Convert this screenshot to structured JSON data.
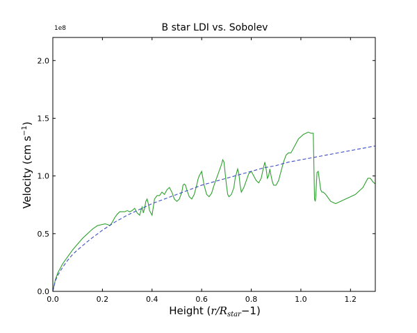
{
  "chart_data": {
    "type": "line",
    "title": "B star LDI vs. Sobolev",
    "xlabel_prefix": "Height (",
    "xlabel_math": "r/R",
    "xlabel_sub": "star",
    "xlabel_suffix": "−1)",
    "ylabel_main": "Velocity (cm s",
    "ylabel_sup": "−1",
    "ylabel_close": ")",
    "y_offset_label": "1e8",
    "xlim": [
      0.0,
      1.3
    ],
    "ylim": [
      0.0,
      2.2
    ],
    "xticks": [
      0.0,
      0.2,
      0.4,
      0.6,
      0.8,
      1.0,
      1.2
    ],
    "xtick_labels": [
      "0.0",
      "0.2",
      "0.4",
      "0.6",
      "0.8",
      "1.0",
      "1.2"
    ],
    "yticks": [
      0.0,
      0.5,
      1.0,
      1.5,
      2.0
    ],
    "ytick_labels": [
      "0.0",
      "0.5",
      "1.0",
      "1.5",
      "2.0"
    ],
    "grid": false,
    "legend": "none",
    "series": [
      {
        "color": "#2ca02c",
        "style": "solid",
        "x": [
          0.0,
          0.005,
          0.01,
          0.02,
          0.04,
          0.06,
          0.08,
          0.1,
          0.12,
          0.14,
          0.16,
          0.18,
          0.2,
          0.21,
          0.22,
          0.23,
          0.24,
          0.25,
          0.26,
          0.27,
          0.28,
          0.29,
          0.3,
          0.31,
          0.32,
          0.33,
          0.34,
          0.35,
          0.355,
          0.36,
          0.365,
          0.37,
          0.375,
          0.38,
          0.385,
          0.39,
          0.4,
          0.41,
          0.42,
          0.43,
          0.44,
          0.45,
          0.46,
          0.47,
          0.48,
          0.49,
          0.5,
          0.51,
          0.52,
          0.525,
          0.53,
          0.535,
          0.54,
          0.55,
          0.56,
          0.57,
          0.58,
          0.585,
          0.59,
          0.6,
          0.61,
          0.62,
          0.63,
          0.64,
          0.65,
          0.66,
          0.67,
          0.68,
          0.685,
          0.69,
          0.695,
          0.7,
          0.705,
          0.71,
          0.72,
          0.73,
          0.735,
          0.74,
          0.745,
          0.75,
          0.755,
          0.76,
          0.77,
          0.78,
          0.79,
          0.8,
          0.81,
          0.82,
          0.83,
          0.84,
          0.85,
          0.855,
          0.86,
          0.865,
          0.87,
          0.875,
          0.88,
          0.885,
          0.89,
          0.9,
          0.91,
          0.92,
          0.93,
          0.94,
          0.95,
          0.96,
          0.97,
          0.98,
          0.99,
          1.0,
          1.01,
          1.02,
          1.03,
          1.04,
          1.05,
          1.055,
          1.058,
          1.06,
          1.065,
          1.07,
          1.075,
          1.08,
          1.085,
          1.09,
          1.1,
          1.12,
          1.14,
          1.16,
          1.18,
          1.2,
          1.22,
          1.24,
          1.25,
          1.26,
          1.27,
          1.28,
          1.29,
          1.3
        ],
        "y": [
          0.0,
          0.05,
          0.1,
          0.16,
          0.24,
          0.3,
          0.36,
          0.41,
          0.46,
          0.5,
          0.54,
          0.57,
          0.58,
          0.585,
          0.58,
          0.57,
          0.6,
          0.64,
          0.67,
          0.69,
          0.69,
          0.69,
          0.7,
          0.69,
          0.7,
          0.72,
          0.68,
          0.66,
          0.7,
          0.73,
          0.68,
          0.72,
          0.78,
          0.8,
          0.76,
          0.7,
          0.66,
          0.8,
          0.83,
          0.83,
          0.86,
          0.84,
          0.88,
          0.9,
          0.86,
          0.8,
          0.78,
          0.8,
          0.86,
          0.92,
          0.93,
          0.92,
          0.88,
          0.82,
          0.8,
          0.84,
          0.92,
          0.97,
          1.0,
          1.04,
          0.92,
          0.84,
          0.82,
          0.85,
          0.92,
          0.98,
          1.04,
          1.1,
          1.14,
          1.12,
          1.02,
          0.92,
          0.84,
          0.82,
          0.84,
          0.9,
          0.98,
          1.02,
          1.06,
          1.02,
          0.92,
          0.86,
          0.9,
          0.96,
          1.02,
          1.04,
          1.0,
          0.96,
          0.94,
          0.98,
          1.08,
          1.12,
          1.06,
          0.98,
          1.0,
          1.06,
          1.0,
          0.95,
          0.92,
          0.92,
          0.96,
          1.04,
          1.12,
          1.18,
          1.2,
          1.2,
          1.24,
          1.28,
          1.32,
          1.34,
          1.36,
          1.37,
          1.38,
          1.37,
          1.37,
          0.8,
          0.78,
          0.82,
          1.03,
          1.04,
          0.96,
          0.88,
          0.86,
          0.86,
          0.84,
          0.78,
          0.76,
          0.78,
          0.8,
          0.82,
          0.84,
          0.88,
          0.9,
          0.94,
          0.98,
          0.98,
          0.95,
          0.93
        ],
        "name": ""
      },
      {
        "color": "#3b4cc0",
        "style": "dashed",
        "x": [
          0.0,
          0.01,
          0.02,
          0.04,
          0.06,
          0.08,
          0.1,
          0.15,
          0.2,
          0.25,
          0.3,
          0.35,
          0.4,
          0.45,
          0.5,
          0.55,
          0.6,
          0.65,
          0.7,
          0.75,
          0.8,
          0.85,
          0.9,
          0.95,
          1.0,
          1.05,
          1.1,
          1.15,
          1.2,
          1.25,
          1.3
        ],
        "y": [
          0.0,
          0.09,
          0.14,
          0.21,
          0.27,
          0.32,
          0.36,
          0.45,
          0.53,
          0.6,
          0.66,
          0.71,
          0.76,
          0.8,
          0.84,
          0.88,
          0.92,
          0.95,
          0.98,
          1.01,
          1.04,
          1.07,
          1.09,
          1.12,
          1.14,
          1.16,
          1.18,
          1.2,
          1.22,
          1.24,
          1.26
        ],
        "name": ""
      }
    ]
  }
}
